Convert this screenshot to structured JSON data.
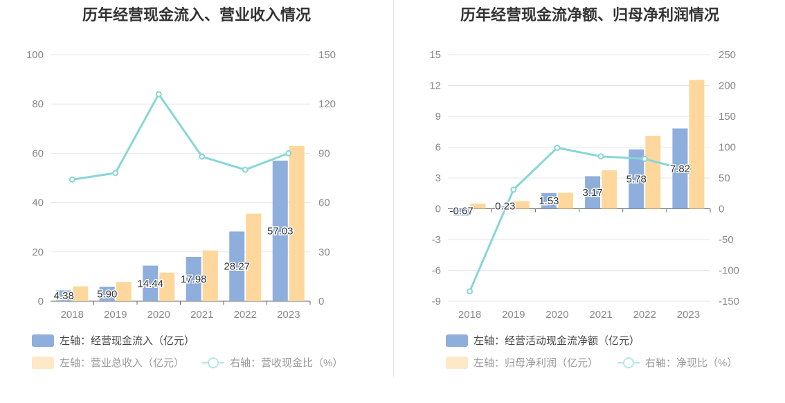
{
  "chart_data": [
    {
      "type": "bar",
      "title": "历年经营现金流入、营业收入情况",
      "categories": [
        "2018",
        "2019",
        "2020",
        "2021",
        "2022",
        "2023"
      ],
      "left_axis": {
        "min": 0,
        "max": 100,
        "ticks": [
          0,
          20,
          40,
          60,
          80,
          100
        ]
      },
      "right_axis": {
        "min": 0,
        "max": 150,
        "ticks": [
          0,
          30,
          60,
          90,
          120,
          150
        ]
      },
      "series": [
        {
          "name": "左轴：经营现金流入（亿元）",
          "axis": "left",
          "type": "bar",
          "color": "#8eaedc",
          "values": [
            4.38,
            5.9,
            14.44,
            17.98,
            28.27,
            57.03
          ],
          "labels": [
            "4.38",
            "5.90",
            "14.44",
            "17.98",
            "28.27",
            "57.03"
          ]
        },
        {
          "name": "左轴：营业总收入（亿元）",
          "axis": "left",
          "type": "bar",
          "color": "#fdd79b",
          "values": [
            6.0,
            7.8,
            11.6,
            20.6,
            35.5,
            63.0
          ]
        },
        {
          "name": "右轴：营收现金比（%）",
          "axis": "right",
          "type": "line",
          "color": "#88d6d6",
          "values": [
            74,
            78,
            126,
            88,
            80,
            90
          ]
        }
      ],
      "grid": true,
      "legend_position": "bottom"
    },
    {
      "type": "bar",
      "title": "历年经营现金流净额、归母净利润情况",
      "categories": [
        "2018",
        "2019",
        "2020",
        "2021",
        "2022",
        "2023"
      ],
      "left_axis": {
        "min": -9,
        "max": 15,
        "ticks": [
          -9,
          -6,
          -3,
          0,
          3,
          6,
          9,
          12,
          15
        ]
      },
      "right_axis": {
        "min": -150,
        "max": 250,
        "ticks": [
          -150,
          -100,
          -50,
          0,
          50,
          100,
          150,
          200,
          250
        ]
      },
      "series": [
        {
          "name": "左轴：经营活动现金流净额（亿元）",
          "axis": "left",
          "type": "bar",
          "color": "#8eaedc",
          "values": [
            -0.67,
            0.23,
            1.53,
            3.17,
            5.78,
            7.82
          ],
          "labels": [
            "-0.67",
            "0.23",
            "1.53",
            "3.17",
            "5.78",
            "7.82"
          ]
        },
        {
          "name": "左轴：归母净利润（亿元）",
          "axis": "left",
          "type": "bar",
          "color": "#fdd79b",
          "values": [
            0.5,
            0.75,
            1.55,
            3.75,
            7.1,
            12.55
          ]
        },
        {
          "name": "右轴：净现比（%）",
          "axis": "right",
          "type": "line",
          "color": "#88d6d6",
          "values": [
            -134,
            31,
            99,
            85,
            81,
            62
          ]
        }
      ],
      "grid": true,
      "legend_position": "bottom"
    }
  ]
}
